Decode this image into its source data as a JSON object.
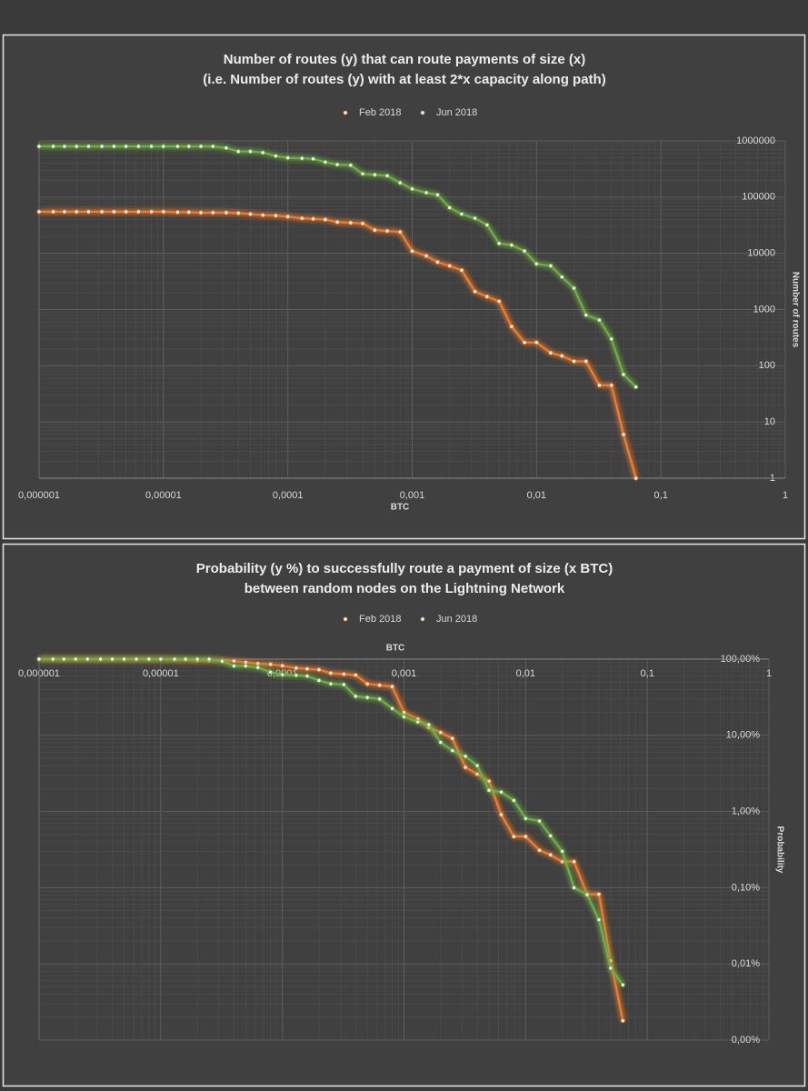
{
  "chart_data": [
    {
      "type": "line",
      "title": [
        "Number of routes (y) that can route payments of size (x)",
        "(i.e. Number of routes (y) with at least 2*x capacity along path)"
      ],
      "x_label": "BTC",
      "y_label": "Number of routes",
      "log_x": true,
      "log_y": true,
      "grid": true,
      "legend": "top",
      "xlim": [
        1e-06,
        1
      ],
      "xticks": [
        {
          "value": 1e-06,
          "label": "0,000001"
        },
        {
          "value": 1e-05,
          "label": "0,00001"
        },
        {
          "value": 0.0001,
          "label": "0,0001"
        },
        {
          "value": 0.001,
          "label": "0,001"
        },
        {
          "value": 0.01,
          "label": "0,01"
        },
        {
          "value": 0.1,
          "label": "0,1"
        },
        1
      ],
      "ylim": [
        1,
        1000000
      ],
      "yticks": [
        1,
        10,
        100,
        1000,
        10000,
        100000,
        1000000
      ],
      "x": [
        1e-06,
        1.3e-06,
        1.6e-06,
        2e-06,
        2.5e-06,
        3.2e-06,
        4e-06,
        5e-06,
        6.3e-06,
        8e-06,
        1e-05,
        1.3e-05,
        1.6e-05,
        2e-05,
        2.5e-05,
        3.2e-05,
        4e-05,
        5e-05,
        6.3e-05,
        8e-05,
        0.0001,
        0.00013,
        0.00016,
        0.0002,
        0.00025,
        0.00032,
        0.0004,
        0.0005,
        0.00063,
        0.0008,
        0.001,
        0.0013,
        0.0016,
        0.002,
        0.0025,
        0.0032,
        0.004,
        0.005,
        0.0063,
        0.008,
        0.01,
        0.013,
        0.016,
        0.02,
        0.025,
        0.032,
        0.04,
        0.05,
        0.063
      ],
      "series": [
        {
          "name": "Feb 2018",
          "color": "#ed7d31",
          "values": [
            55000,
            55000,
            55000,
            55000,
            55000,
            55000,
            55000,
            55000,
            55000,
            55000,
            55000,
            54000,
            54000,
            53000,
            53000,
            53000,
            52000,
            50000,
            48000,
            47000,
            45000,
            42000,
            41000,
            40000,
            36000,
            35000,
            34000,
            26000,
            25000,
            24000,
            11000,
            9000,
            7000,
            6000,
            5000,
            2100,
            1700,
            1400,
            500,
            260,
            260,
            170,
            150,
            120,
            120,
            45,
            45,
            6,
            1
          ]
        },
        {
          "name": "Jun 2018",
          "color": "#70ad47",
          "values": [
            800000,
            800000,
            800000,
            800000,
            800000,
            800000,
            800000,
            800000,
            800000,
            800000,
            800000,
            800000,
            800000,
            800000,
            800000,
            750000,
            650000,
            650000,
            620000,
            540000,
            500000,
            490000,
            480000,
            420000,
            380000,
            370000,
            260000,
            250000,
            240000,
            180000,
            140000,
            120000,
            110000,
            65000,
            50000,
            42000,
            32000,
            15000,
            14000,
            11000,
            6500,
            6000,
            3800,
            2400,
            800,
            650,
            300,
            70,
            42
          ]
        }
      ]
    },
    {
      "type": "line",
      "title": [
        "Probability (y %) to successfully route a payment of size (x BTC)",
        "between random nodes on the Lightning Network"
      ],
      "x_label": "BTC",
      "y_label": "Probability",
      "log_x": true,
      "log_y": true,
      "grid": true,
      "legend": "top",
      "x_axis_position": "top",
      "xlim": [
        1e-06,
        1
      ],
      "xticks": [
        {
          "value": 1e-06,
          "label": "0,000001"
        },
        {
          "value": 1e-05,
          "label": "0,00001"
        },
        {
          "value": 0.0001,
          "label": "0,0001"
        },
        {
          "value": 0.001,
          "label": "0,001"
        },
        {
          "value": 0.01,
          "label": "0,01"
        },
        {
          "value": 0.1,
          "label": "0,1"
        },
        1
      ],
      "ylim": [
        0.001,
        100
      ],
      "yticks": [
        {
          "value": 0.001,
          "label": "0,00%"
        },
        {
          "value": 0.01,
          "label": "0,01%"
        },
        {
          "value": 0.1,
          "label": "0,10%"
        },
        {
          "value": 1,
          "label": "1,00%"
        },
        {
          "value": 10,
          "label": "10,00%"
        },
        {
          "value": 100,
          "label": "100,00%"
        }
      ],
      "x": [
        1e-06,
        1.3e-06,
        1.6e-06,
        2e-06,
        2.5e-06,
        3.2e-06,
        4e-06,
        5e-06,
        6.3e-06,
        8e-06,
        1e-05,
        1.3e-05,
        1.6e-05,
        2e-05,
        2.5e-05,
        3.2e-05,
        4e-05,
        5e-05,
        6.3e-05,
        8e-05,
        0.0001,
        0.00013,
        0.00016,
        0.0002,
        0.00025,
        0.00032,
        0.0004,
        0.0005,
        0.00063,
        0.0008,
        0.001,
        0.0013,
        0.0016,
        0.002,
        0.0025,
        0.0032,
        0.004,
        0.005,
        0.0063,
        0.008,
        0.01,
        0.013,
        0.016,
        0.02,
        0.025,
        0.032,
        0.04,
        0.05,
        0.063
      ],
      "series": [
        {
          "name": "Feb 2018",
          "color": "#ed7d31",
          "values": [
            100,
            100,
            100,
            100,
            100,
            100,
            100,
            100,
            100,
            100,
            100,
            98.2,
            98.2,
            96.4,
            96.4,
            96.4,
            94.5,
            90.9,
            87.3,
            85.5,
            81.8,
            76.4,
            74.5,
            72.7,
            65.5,
            63.6,
            61.8,
            47.3,
            45.5,
            43.6,
            20,
            16.4,
            12.7,
            10.9,
            9.1,
            3.8,
            3.1,
            2.5,
            0.91,
            0.47,
            0.47,
            0.31,
            0.27,
            0.22,
            0.22,
            0.082,
            0.082,
            0.011,
            0.0018
          ]
        },
        {
          "name": "Jun 2018",
          "color": "#70ad47",
          "values": [
            100,
            100,
            100,
            100,
            100,
            100,
            100,
            100,
            100,
            100,
            100,
            100,
            100,
            100,
            100,
            93.8,
            81.3,
            81.3,
            77.5,
            67.5,
            62.5,
            61.3,
            60,
            52.5,
            47.5,
            46.3,
            32.5,
            31.3,
            30,
            22.5,
            17.5,
            15,
            13.8,
            8.1,
            6.3,
            5.3,
            4,
            1.9,
            1.8,
            1.4,
            0.81,
            0.75,
            0.48,
            0.3,
            0.1,
            0.081,
            0.038,
            0.0088,
            0.0053
          ]
        }
      ]
    }
  ]
}
